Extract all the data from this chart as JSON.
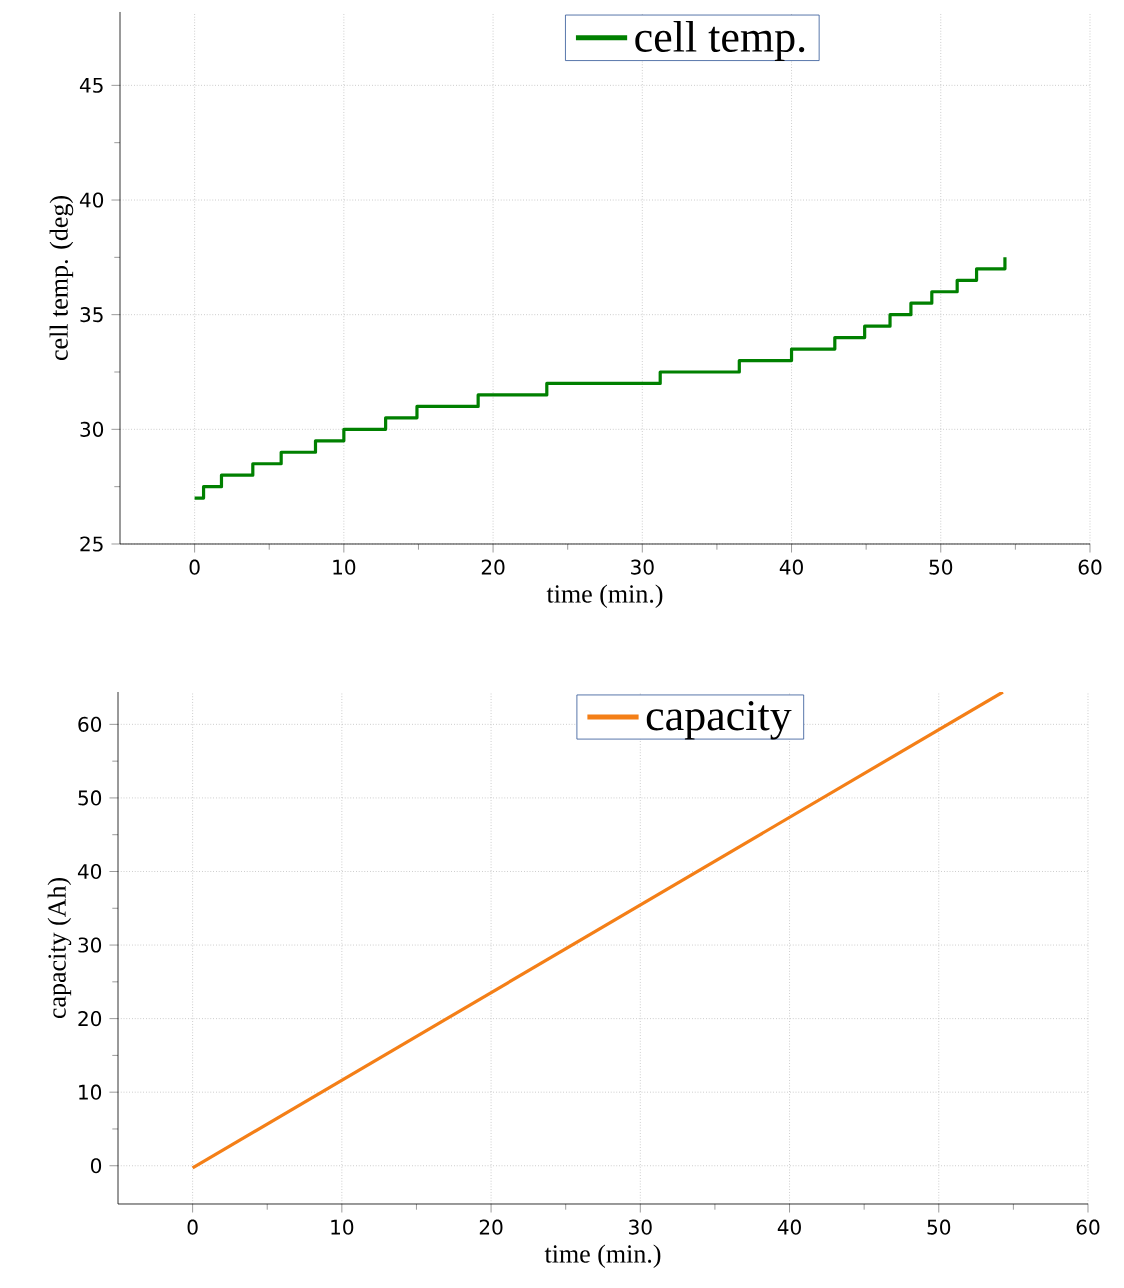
{
  "chart_data": [
    {
      "type": "step",
      "xlabel": "time (min.)",
      "ylabel": "cell temp. (deg)",
      "xlim": [
        -5,
        60
      ],
      "ylim": [
        25,
        48.2
      ],
      "xticks": [
        0,
        10,
        20,
        30,
        40,
        50,
        60
      ],
      "yticks": [
        25,
        30,
        35,
        40,
        45
      ],
      "grid": true,
      "legend": "top",
      "series": [
        {
          "name": "cell temp.",
          "color": "#008000",
          "x": [
            0,
            0.6,
            1.8,
            3.9,
            5.8,
            8.1,
            10,
            12.8,
            14.9,
            19,
            23.6,
            31.2,
            36.5,
            40,
            42.9,
            44.9,
            46.6,
            48,
            49.4,
            51.1,
            52.4,
            54.3
          ],
          "values": [
            27,
            27.5,
            28,
            28.5,
            29,
            29.5,
            30,
            30.5,
            31,
            31.5,
            32,
            32.5,
            33,
            33.5,
            34,
            34.5,
            35,
            35.5,
            36,
            36.5,
            37,
            37.5
          ]
        }
      ]
    },
    {
      "type": "line",
      "xlabel": "time (min.)",
      "ylabel": "capacity (Ah)",
      "xlim": [
        -5,
        60
      ],
      "ylim": [
        -5.2,
        64.4
      ],
      "xticks": [
        0,
        10,
        20,
        30,
        40,
        50,
        60
      ],
      "yticks": [
        0,
        10,
        20,
        30,
        40,
        50,
        60
      ],
      "grid": true,
      "legend": "top",
      "series": [
        {
          "name": "capacity",
          "color": "#f47f17",
          "x": [
            0,
            54.3
          ],
          "values": [
            -0.3,
            64.4
          ]
        }
      ]
    }
  ]
}
